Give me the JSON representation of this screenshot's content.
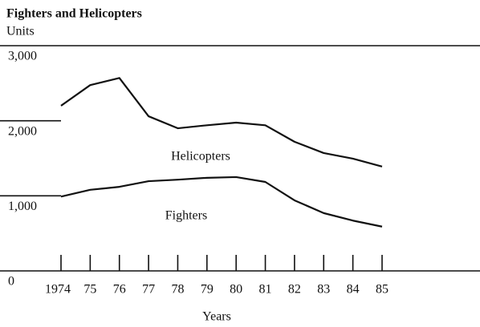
{
  "chart_data": {
    "type": "line",
    "title": "Fighters and Helicopters",
    "y_label": "Units",
    "x_label": "Years",
    "categories": [
      "1974",
      "75",
      "76",
      "77",
      "78",
      "79",
      "80",
      "81",
      "82",
      "83",
      "84",
      "85"
    ],
    "series": [
      {
        "name": "Helicopters",
        "color": "#111111",
        "values": [
          2200,
          2475,
          2570,
          2060,
          1900,
          1940,
          1975,
          1940,
          1720,
          1570,
          1495,
          1390
        ]
      },
      {
        "name": "Fighters",
        "color": "#111111",
        "values": [
          990,
          1080,
          1120,
          1195,
          1215,
          1240,
          1250,
          1185,
          940,
          770,
          670,
          590
        ]
      }
    ],
    "ylim": [
      0,
      3000
    ],
    "yticks": [
      0,
      {
        "value": 1000,
        "label": "1,000"
      },
      {
        "value": 2000,
        "label": "2,000"
      },
      {
        "value": 3000,
        "label": "3,000"
      }
    ],
    "grid": true
  }
}
